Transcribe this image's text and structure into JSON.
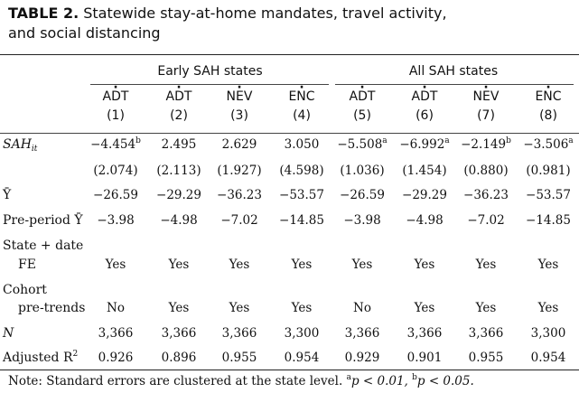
{
  "table": {
    "label": "TABLE 2.",
    "title_line1": "Statewide stay-at-home mandates, travel activity,",
    "title_line2": "and social distancing",
    "groups": [
      "Early SAH states",
      "All SAH states"
    ],
    "columns": [
      {
        "var": "ADT",
        "accent": "·",
        "num": "(1)"
      },
      {
        "var": "ADT",
        "accent": "·",
        "num": "(2)"
      },
      {
        "var": "NEV",
        "accent": "·",
        "num": "(3)"
      },
      {
        "var": "ENC",
        "accent": "·",
        "num": "(4)"
      },
      {
        "var": "ADT",
        "accent": "·",
        "num": "(5)"
      },
      {
        "var": "ADT",
        "accent": "·",
        "num": "(6)"
      },
      {
        "var": "NEV",
        "accent": "·",
        "num": "(7)"
      },
      {
        "var": "ENC",
        "accent": "·",
        "num": "(8)"
      }
    ],
    "rows": {
      "sah": {
        "label": "SAH",
        "label_sub": "it",
        "values": [
          "−4.454",
          "2.495",
          "2.629",
          "3.050",
          "−5.508",
          "−6.992",
          "−2.149",
          "−3.506"
        ],
        "sups": [
          "b",
          "",
          "",
          "",
          "a",
          "a",
          "b",
          "a"
        ]
      },
      "se": {
        "values": [
          "(2.074)",
          "(2.113)",
          "(1.927)",
          "(4.598)",
          "(1.036)",
          "(1.454)",
          "(0.880)",
          "(0.981)"
        ]
      },
      "ybar": {
        "label": "Ȳ",
        "values": [
          "−26.59",
          "−29.29",
          "−36.23",
          "−53.57",
          "−26.59",
          "−29.29",
          "−36.23",
          "−53.57"
        ]
      },
      "preperiod": {
        "label": "Pre-period Ȳ",
        "values": [
          "−3.98",
          "−4.98",
          "−7.02",
          "−14.85",
          "−3.98",
          "−4.98",
          "−7.02",
          "−14.85"
        ]
      },
      "fe": {
        "label_line1": "State + date",
        "label_line2": "FE",
        "values": [
          "Yes",
          "Yes",
          "Yes",
          "Yes",
          "Yes",
          "Yes",
          "Yes",
          "Yes"
        ]
      },
      "cohort": {
        "label_line1": "Cohort",
        "label_line2": "pre-trends",
        "values": [
          "No",
          "Yes",
          "Yes",
          "Yes",
          "No",
          "Yes",
          "Yes",
          "Yes"
        ]
      },
      "n": {
        "label": "N",
        "values": [
          "3,366",
          "3,366",
          "3,366",
          "3,300",
          "3,366",
          "3,366",
          "3,366",
          "3,300"
        ]
      },
      "r2": {
        "label": "Adjusted R",
        "label_sup": "2",
        "values": [
          "0.926",
          "0.896",
          "0.955",
          "0.954",
          "0.929",
          "0.901",
          "0.955",
          "0.954"
        ]
      }
    },
    "note": {
      "text": "Note: Standard errors are clustered at the state level. ",
      "sig_a": "a",
      "sig_a_text": "p < 0.01, ",
      "sig_b": "b",
      "sig_b_text": "p < 0.05."
    }
  }
}
